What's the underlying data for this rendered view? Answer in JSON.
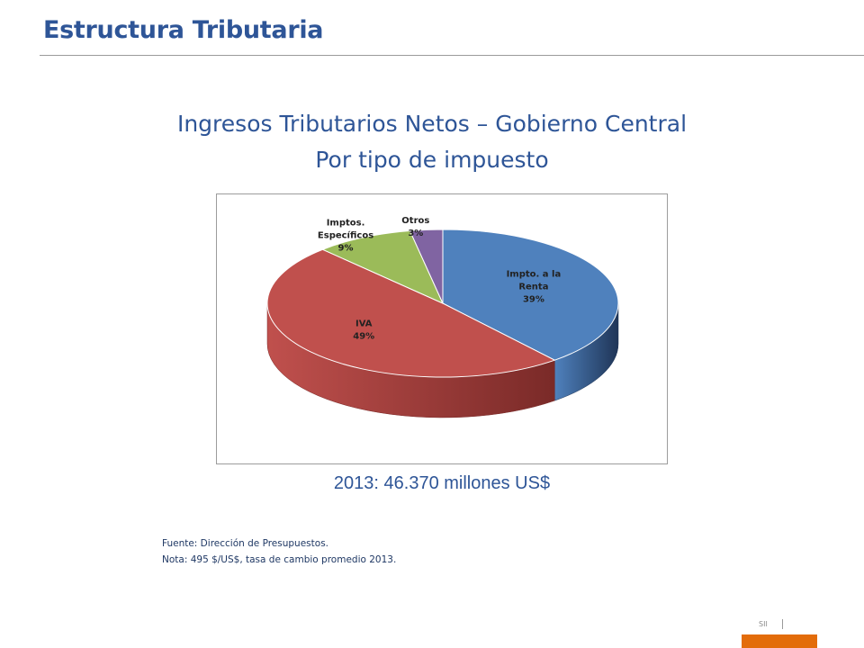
{
  "slide": {
    "title": "Estructura Tributaria",
    "chart_title_line1": "Ingresos Tributarios Netos – Gobierno Central",
    "chart_title_line2": "Por tipo de impuesto",
    "total": "2013: 46.370 millones US$",
    "source_note": "Fuente: Dirección de Presupuestos.",
    "rate_note": "Nota: 495 $/US$, tasa de cambio promedio 2013.",
    "footer_brand": "SII"
  },
  "colors": {
    "title": "#2e5597",
    "accent_bar": "#e36c0a"
  },
  "chart_data": {
    "type": "pie",
    "style": "3d",
    "slices": [
      {
        "label": "Impto. a la Renta",
        "label_lines": [
          "Impto. a la",
          "Renta"
        ],
        "pct_label": "39%",
        "value": 39,
        "color": "#4f81bd",
        "side_color": "#1f3557"
      },
      {
        "label": "IVA",
        "label_lines": [
          "IVA"
        ],
        "pct_label": "49%",
        "value": 49,
        "color": "#c0504d",
        "side_color": "#7a2a28"
      },
      {
        "label": "Imptos. Específicos",
        "label_lines": [
          "Imptos.",
          "Específicos"
        ],
        "pct_label": "9%",
        "value": 9,
        "color": "#9bbb59",
        "side_color": "#5d7a2c"
      },
      {
        "label": "Otros",
        "label_lines": [
          "Otros"
        ],
        "pct_label": "3%",
        "value": 3,
        "color": "#8064a2",
        "side_color": "#4a3766"
      }
    ]
  }
}
